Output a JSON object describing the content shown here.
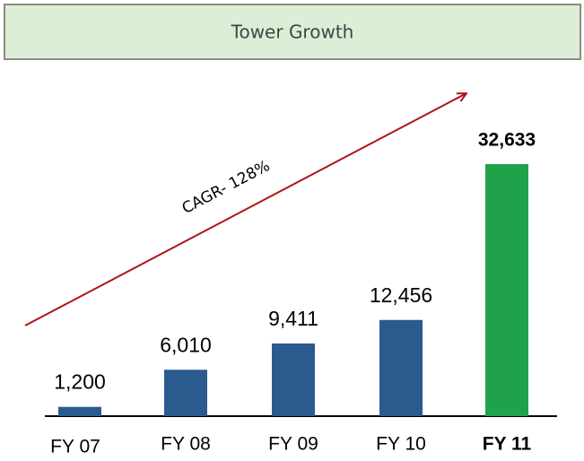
{
  "chart_data": {
    "type": "bar",
    "title": "Tower Growth",
    "annotation": "CAGR- 128%",
    "categories": [
      "FY 07",
      "FY 08",
      "FY 09",
      "FY 10",
      "FY 11"
    ],
    "values": [
      1200,
      6010,
      9411,
      12456,
      32633
    ],
    "value_labels": [
      "1,200",
      "6,010",
      "9,411",
      "12,456",
      "32,633"
    ],
    "colors": [
      "#2b5a8e",
      "#2b5a8e",
      "#2b5a8e",
      "#2b5a8e",
      "#1fa24a"
    ],
    "bold": [
      false,
      false,
      false,
      false,
      true
    ]
  }
}
